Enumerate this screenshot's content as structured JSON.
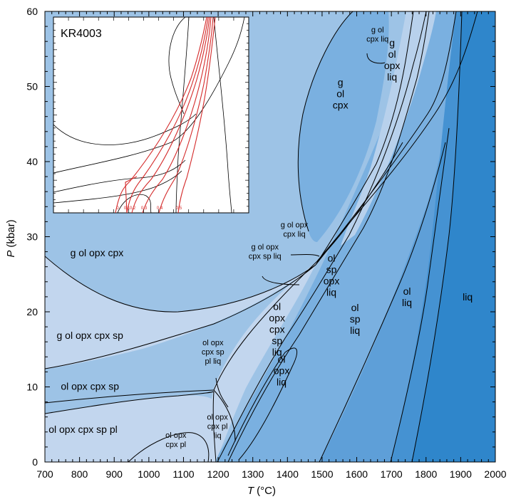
{
  "chart_data": {
    "type": "phase-diagram",
    "title": "",
    "xlabel": {
      "symbol": "T",
      "unit": "(°C)"
    },
    "ylabel": {
      "symbol": "P",
      "unit": "(kbar)"
    },
    "xlim": [
      700,
      2000
    ],
    "ylim": [
      0,
      60
    ],
    "x_ticks": [
      700,
      800,
      900,
      1000,
      1100,
      1200,
      1300,
      1400,
      1500,
      1600,
      1700,
      1800,
      1900,
      2000
    ],
    "y_ticks": [
      0,
      10,
      20,
      30,
      40,
      50,
      60
    ],
    "colors": {
      "pale": "#c2d6ee",
      "light": "#9dc3e6",
      "mid": "#7ab0e0",
      "medium": "#5e9fd8",
      "dark": "#4592d2",
      "darkest": "#2f86cb",
      "line": "#000000",
      "inset_line": "#d42a2a"
    },
    "field_labels": [
      {
        "lines": [
          "g ol opx cpx"
        ],
        "T": 850,
        "P": 27.4,
        "size": "normal"
      },
      {
        "lines": [
          "g ol opx cpx sp"
        ],
        "T": 830,
        "P": 16.4,
        "size": "normal"
      },
      {
        "lines": [
          "ol opx cpx sp"
        ],
        "T": 830,
        "P": 9.6,
        "size": "normal"
      },
      {
        "lines": [
          "ol opx cpx sp pl"
        ],
        "T": 810,
        "P": 3.9,
        "size": "normal"
      },
      {
        "lines": [
          "ol opx",
          "cpx pl"
        ],
        "T": 1078,
        "P": 2.6,
        "size": "small"
      },
      {
        "lines": [
          "ol opx",
          "cpx pl",
          "liq"
        ],
        "T": 1198,
        "P": 4.4,
        "size": "small"
      },
      {
        "lines": [
          "ol opx",
          "cpx sp",
          "pl liq"
        ],
        "T": 1185,
        "P": 14.3,
        "size": "small"
      },
      {
        "lines": [
          "ol",
          "opx",
          "cpx",
          "sp",
          "liq"
        ],
        "T": 1370,
        "P": 17.2,
        "size": "normal"
      },
      {
        "lines": [
          "ol",
          "opx",
          "liq"
        ],
        "T": 1383,
        "P": 11.7,
        "size": "normal"
      },
      {
        "lines": [
          "g ol opx",
          "cpx sp liq"
        ],
        "T": 1335,
        "P": 27.7,
        "size": "small"
      },
      {
        "lines": [
          "g ol opx",
          "cpx liq"
        ],
        "T": 1420,
        "P": 30.6,
        "size": "small"
      },
      {
        "lines": [
          "ol",
          "sp",
          "opx",
          "liq"
        ],
        "T": 1527,
        "P": 24.4,
        "size": "normal"
      },
      {
        "lines": [
          "ol",
          "sp",
          "liq"
        ],
        "T": 1595,
        "P": 18.6,
        "size": "normal"
      },
      {
        "lines": [
          "ol",
          "liq"
        ],
        "T": 1745,
        "P": 21.5,
        "size": "normal"
      },
      {
        "lines": [
          "liq"
        ],
        "T": 1920,
        "P": 21.5,
        "size": "normal"
      },
      {
        "lines": [
          "g",
          "ol",
          "cpx"
        ],
        "T": 1553,
        "P": 48.6,
        "size": "normal"
      },
      {
        "lines": [
          "g ol",
          "cpx liq"
        ],
        "T": 1660,
        "P": 56.6,
        "size": "small"
      },
      {
        "lines": [
          "g",
          "ol",
          "opx",
          "liq"
        ],
        "T": 1702,
        "P": 53.1,
        "size": "normal"
      }
    ],
    "inset": {
      "title": "KR4003",
      "red_curve_labels": [
        "0",
        "0.1",
        "0.2",
        "0.3",
        "0.4",
        "0.5"
      ]
    }
  }
}
